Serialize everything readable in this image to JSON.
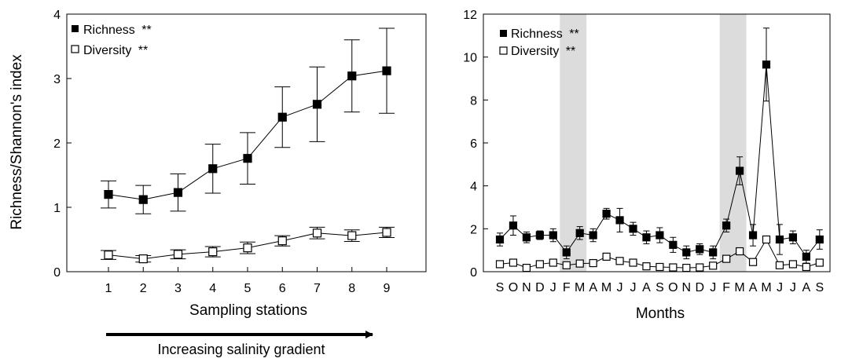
{
  "chart_data": [
    {
      "type": "line",
      "categories": [
        "1",
        "2",
        "3",
        "4",
        "5",
        "6",
        "7",
        "8",
        "9"
      ],
      "xlabel": "Sampling stations",
      "ylabel": "Richness/Shannon's index",
      "ylim": [
        0,
        4
      ],
      "yticks": [
        "0",
        "1",
        "2",
        "3",
        "4"
      ],
      "legend": "top-left",
      "grid": false,
      "series": [
        {
          "name": "Richness",
          "marker": "filled-square",
          "signif": "**",
          "values": [
            1.2,
            1.12,
            1.23,
            1.6,
            1.76,
            2.4,
            2.6,
            3.04,
            3.12
          ],
          "errors": [
            0.21,
            0.22,
            0.29,
            0.38,
            0.4,
            0.47,
            0.58,
            0.56,
            0.66
          ]
        },
        {
          "name": "Diversity",
          "marker": "open-square",
          "signif": "**",
          "values": [
            0.26,
            0.2,
            0.27,
            0.31,
            0.37,
            0.48,
            0.6,
            0.56,
            0.61
          ],
          "errors": [
            0.07,
            0.05,
            0.07,
            0.08,
            0.09,
            0.08,
            0.09,
            0.09,
            0.08
          ]
        }
      ],
      "annotation": "Increasing salinity gradient"
    },
    {
      "type": "line",
      "categories": [
        "S",
        "O",
        "N",
        "D",
        "J",
        "F",
        "M",
        "A",
        "M",
        "J",
        "J",
        "A",
        "S",
        "O",
        "N",
        "D",
        "J",
        "F",
        "M",
        "A",
        "M",
        "J",
        "J",
        "A",
        "S"
      ],
      "xlabel": "Months",
      "ylabel": "",
      "ylim": [
        0,
        12
      ],
      "yticks": [
        "0",
        "2",
        "4",
        "6",
        "8",
        "10",
        "12"
      ],
      "legend": "top-left",
      "grid": false,
      "shaded_ranges": [
        [
          "F",
          "M"
        ],
        [
          "F",
          "M"
        ]
      ],
      "series": [
        {
          "name": "Richness",
          "marker": "filled-square",
          "signif": "**",
          "values": [
            1.5,
            2.15,
            1.6,
            1.7,
            1.7,
            0.9,
            1.8,
            1.7,
            2.7,
            2.4,
            2.0,
            1.6,
            1.7,
            1.25,
            0.9,
            1.05,
            0.9,
            2.15,
            4.7,
            1.7,
            9.65,
            1.5,
            1.6,
            0.7,
            1.5
          ],
          "errors": [
            0.3,
            0.45,
            0.25,
            0.2,
            0.3,
            0.3,
            0.3,
            0.3,
            0.25,
            0.55,
            0.3,
            0.3,
            0.35,
            0.35,
            0.3,
            0.25,
            0.3,
            0.3,
            0.65,
            0.5,
            1.7,
            0.7,
            0.3,
            0.3,
            0.45
          ]
        },
        {
          "name": "Diversity",
          "marker": "open-square",
          "signif": "**",
          "values": [
            0.35,
            0.42,
            0.18,
            0.35,
            0.42,
            0.3,
            0.38,
            0.4,
            0.7,
            0.5,
            0.42,
            0.25,
            0.22,
            0.2,
            0.18,
            0.2,
            0.28,
            0.6,
            0.95,
            0.45,
            1.5,
            0.3,
            0.35,
            0.22,
            0.42
          ],
          "errors": [
            0.05,
            0.05,
            0.05,
            0.05,
            0.05,
            0.05,
            0.05,
            0.05,
            0.08,
            0.05,
            0.05,
            0.05,
            0.05,
            0.05,
            0.05,
            0.05,
            0.05,
            0.08,
            0.1,
            0.05,
            0.15,
            0.05,
            0.05,
            0.05,
            0.05
          ]
        }
      ]
    }
  ]
}
